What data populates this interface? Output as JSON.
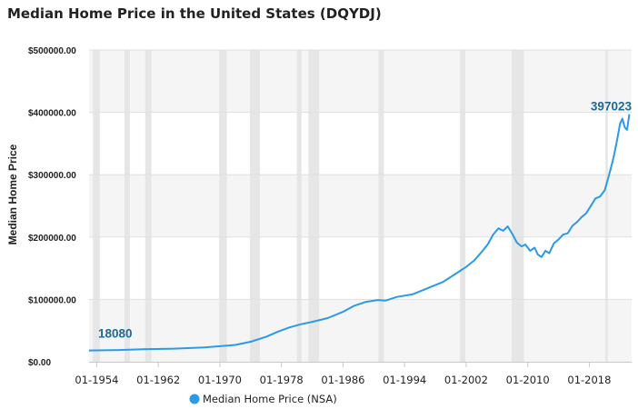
{
  "chart_data": {
    "type": "line",
    "title": "Median Home Price in the United States (DQYDJ)",
    "xlabel": "",
    "ylabel": "Median Home Price",
    "ylim": [
      0,
      500000
    ],
    "xlim": [
      1953.0,
      2023.5
    ],
    "grid": true,
    "yticks": [
      {
        "value": 0,
        "label": "$0.00"
      },
      {
        "value": 100000,
        "label": "$100000.00"
      },
      {
        "value": 200000,
        "label": "$200000.00"
      },
      {
        "value": 300000,
        "label": "$300000.00"
      },
      {
        "value": 400000,
        "label": "$400000.00"
      },
      {
        "value": 500000,
        "label": "$500000.00"
      }
    ],
    "xticks": [
      {
        "value": 1954,
        "label": "01-1954"
      },
      {
        "value": 1962,
        "label": "01-1962"
      },
      {
        "value": 1970,
        "label": "01-1970"
      },
      {
        "value": 1978,
        "label": "01-1978"
      },
      {
        "value": 1986,
        "label": "01-1986"
      },
      {
        "value": 1994,
        "label": "01-1994"
      },
      {
        "value": 2002,
        "label": "01-2002"
      },
      {
        "value": 2010,
        "label": "01-2010"
      },
      {
        "value": 2018,
        "label": "01-2018"
      }
    ],
    "recessions": [
      [
        1953.5,
        1954.4
      ],
      [
        1957.6,
        1958.3
      ],
      [
        1960.3,
        1961.1
      ],
      [
        1969.9,
        1970.9
      ],
      [
        1973.9,
        1975.2
      ],
      [
        1980.0,
        1980.6
      ],
      [
        1981.5,
        1982.9
      ],
      [
        1990.6,
        1991.3
      ],
      [
        2001.2,
        2001.9
      ],
      [
        2007.9,
        2009.5
      ],
      [
        2020.1,
        2020.4
      ]
    ],
    "series": [
      {
        "name": "Median Home Price (NSA)",
        "color": "#2c9ae6",
        "x": [
          1953.0,
          1956,
          1960,
          1964,
          1968,
          1970,
          1972,
          1974,
          1976,
          1977.5,
          1979,
          1980.5,
          1982,
          1984,
          1986,
          1987.5,
          1989,
          1990.5,
          1991.5,
          1993,
          1995,
          1997,
          1999,
          2000.5,
          2002,
          2003,
          2004,
          2004.8,
          2005.5,
          2006.2,
          2006.8,
          2007.4,
          2008.0,
          2008.6,
          2009.2,
          2009.7,
          2010.3,
          2010.9,
          2011.3,
          2011.8,
          2012.3,
          2012.8,
          2013.4,
          2014,
          2014.6,
          2015.2,
          2015.8,
          2016.4,
          2017,
          2017.6,
          2018.2,
          2018.8,
          2019.4,
          2020.0,
          2020.4,
          2020.8,
          2021.2,
          2021.6,
          2022.0,
          2022.3,
          2022.6,
          2022.9,
          2023.2
        ],
        "values": [
          18080,
          18500,
          20000,
          21000,
          23000,
          25000,
          27000,
          32000,
          40000,
          48000,
          55000,
          60000,
          64000,
          70000,
          80000,
          90000,
          96000,
          99000,
          98000,
          104000,
          108000,
          118000,
          128000,
          140000,
          152000,
          162000,
          176000,
          188000,
          204000,
          214000,
          210000,
          217000,
          205000,
          191000,
          185000,
          188000,
          178000,
          183000,
          172000,
          168000,
          178000,
          174000,
          190000,
          196000,
          204000,
          206000,
          218000,
          224000,
          232000,
          238000,
          250000,
          262000,
          265000,
          275000,
          292000,
          310000,
          330000,
          355000,
          382000,
          390000,
          376000,
          372000,
          397023
        ]
      }
    ],
    "data_labels": [
      {
        "series": 0,
        "index": 0,
        "text": "18080"
      },
      {
        "series": 0,
        "index": 62,
        "text": "397023"
      }
    ],
    "legend": {
      "placement": "bottom-center",
      "entries": [
        "Median Home Price (NSA)"
      ]
    }
  }
}
